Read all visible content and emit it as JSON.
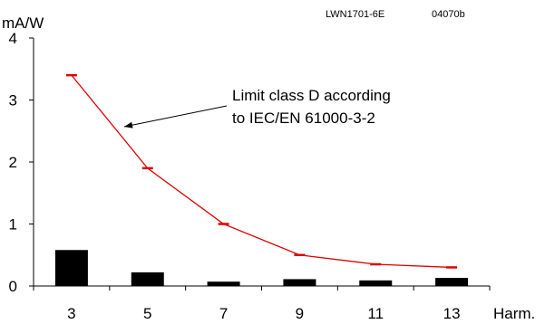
{
  "header": {
    "doc_code": "LWN1701-6E",
    "figure_code": "04070b"
  },
  "chart_data": {
    "type": "bar",
    "ylabel": "mA/W",
    "xlabel": "Harm.",
    "categories": [
      "3",
      "5",
      "7",
      "9",
      "11",
      "13"
    ],
    "ylim": [
      0,
      4
    ],
    "yticks": [
      "0",
      "1",
      "2",
      "3",
      "4"
    ],
    "grid": false,
    "series": [
      {
        "kind": "bar",
        "values": [
          0.58,
          0.22,
          0.07,
          0.11,
          0.09,
          0.13
        ],
        "color": "#000000"
      },
      {
        "kind": "line",
        "values": [
          3.4,
          1.9,
          1.0,
          0.5,
          0.35,
          0.3
        ],
        "color": "#e00000"
      }
    ],
    "annotation": {
      "lines": [
        "Limit class D according",
        "to IEC/EN 61000-3-2"
      ]
    }
  }
}
